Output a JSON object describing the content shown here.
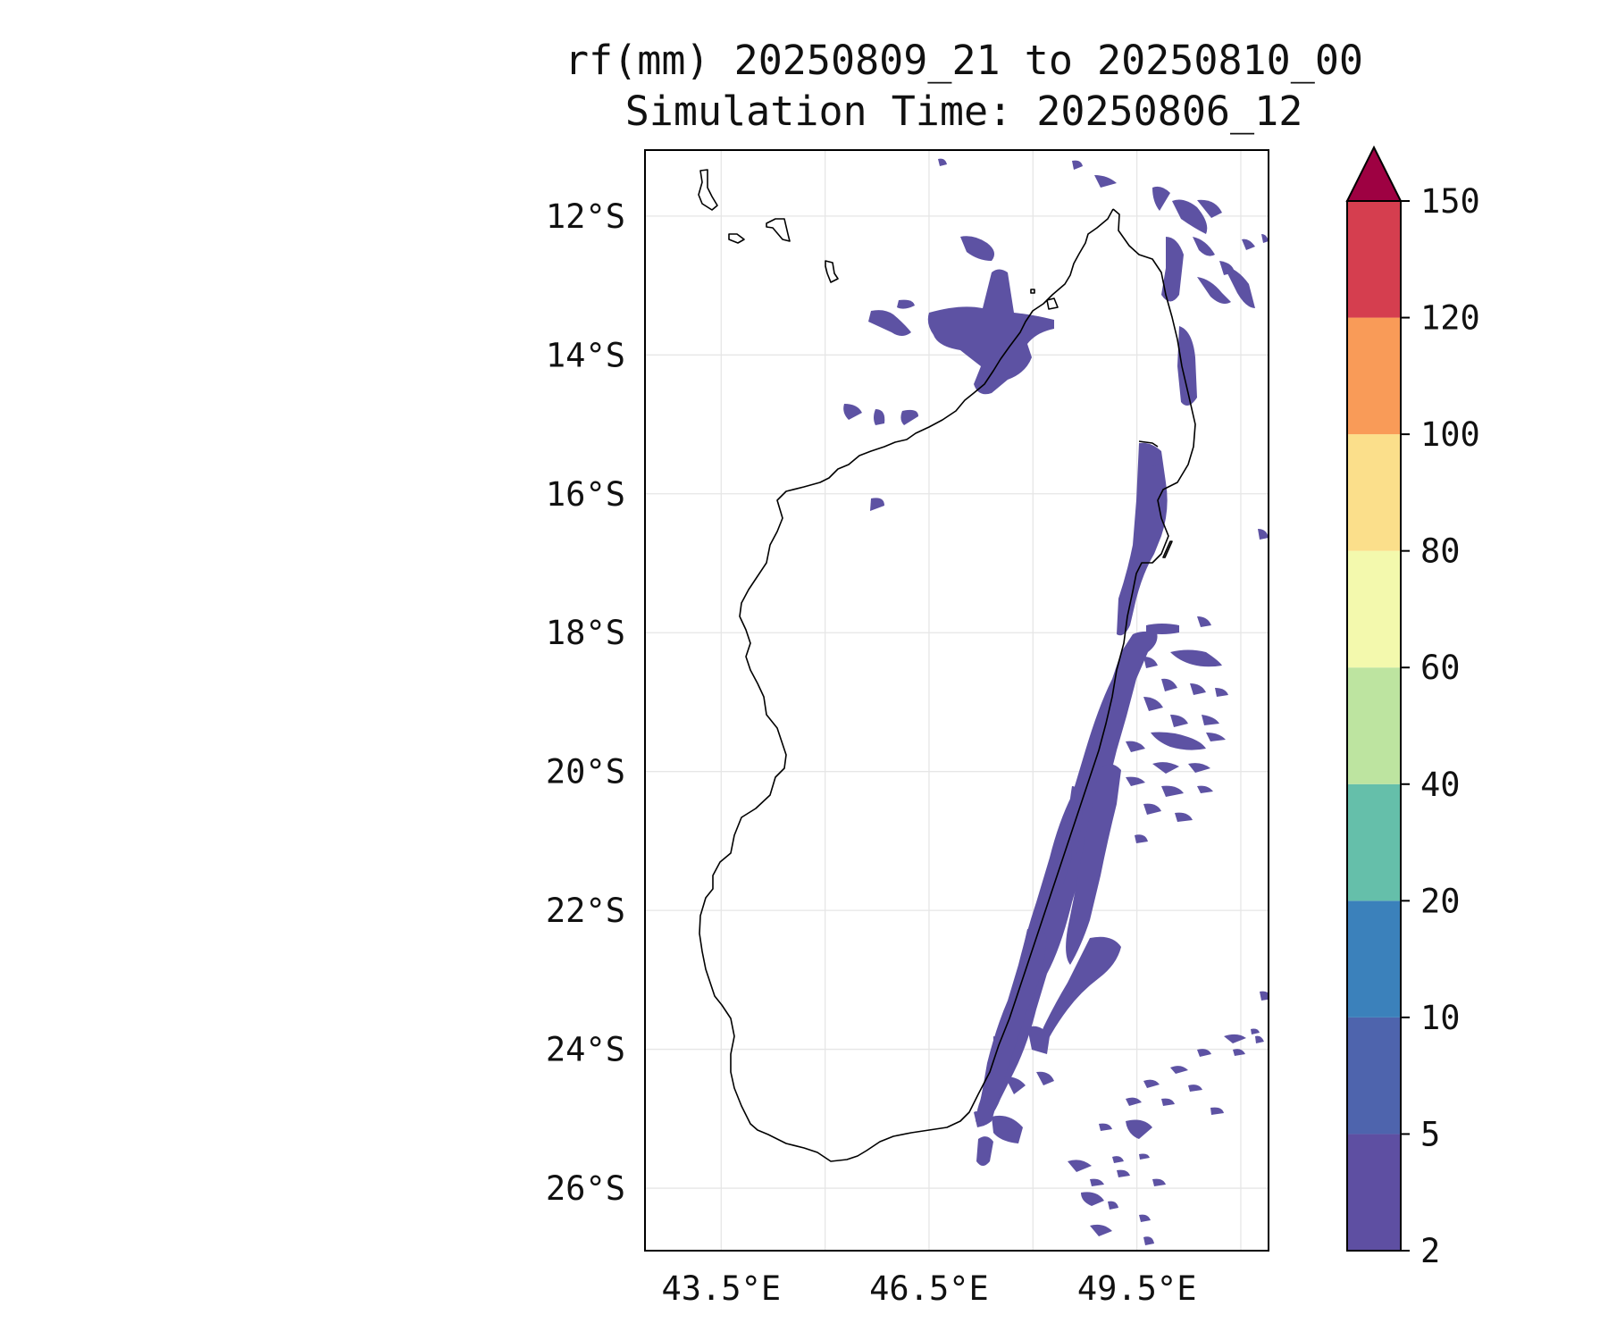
{
  "title": {
    "line1": "rf(mm) 20250809_21 to 20250810_00",
    "line2": "Simulation Time: 20250806_12"
  },
  "map": {
    "lat_labels": [
      "12°S",
      "14°S",
      "16°S",
      "18°S",
      "20°S",
      "22°S",
      "24°S",
      "26°S"
    ],
    "lon_labels": [
      "43.5°E",
      "46.5°E",
      "49.5°E"
    ],
    "lat_values": [
      -12,
      -14,
      -16,
      -18,
      -20,
      -22,
      -24,
      -26
    ],
    "lon_values": [
      43.5,
      46.5,
      49.5
    ],
    "lat_range": [
      -26.9,
      -11.05
    ],
    "lon_range": [
      42.4,
      51.4
    ],
    "gridlines": true,
    "coastline_color": "#000000",
    "rain_color": "#5d52a3"
  },
  "colorbar": {
    "levels": [
      "2",
      "5",
      "10",
      "20",
      "40",
      "60",
      "80",
      "100",
      "120",
      "150"
    ],
    "colors": [
      "#5e4fa2",
      "#4e64ad",
      "#3b81bb",
      "#65bfaa",
      "#bde4a0",
      "#f3f9ad",
      "#fbdf8b",
      "#f99b58",
      "#d53e4f",
      "#9e0142"
    ],
    "extend": "max"
  }
}
